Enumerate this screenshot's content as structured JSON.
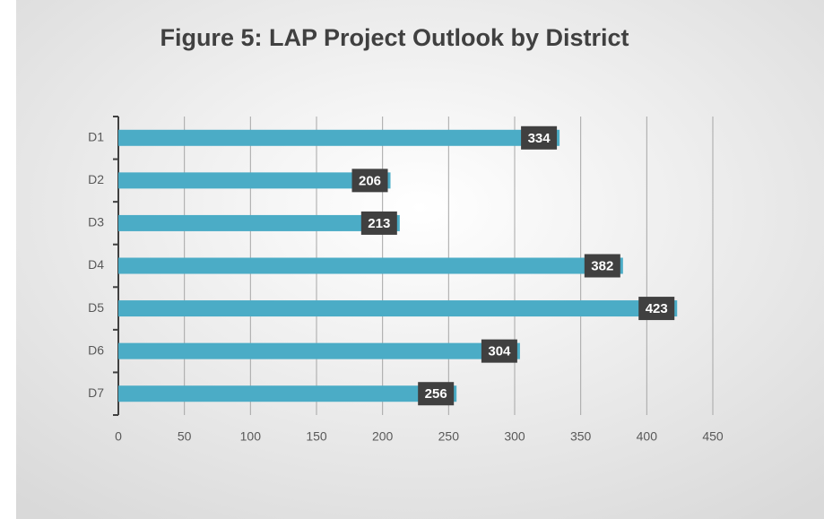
{
  "chart_data": {
    "type": "bar",
    "orientation": "horizontal",
    "title": "Figure 5: LAP Project Outlook by District",
    "categories": [
      "D1",
      "D2",
      "D3",
      "D4",
      "D5",
      "D6",
      "D7"
    ],
    "values": [
      334,
      206,
      213,
      382,
      423,
      304,
      256
    ],
    "color": "#4bacc6",
    "xlim": [
      0,
      450
    ],
    "xticks": [
      0,
      50,
      100,
      150,
      200,
      250,
      300,
      350,
      400,
      450
    ],
    "grid": true
  }
}
